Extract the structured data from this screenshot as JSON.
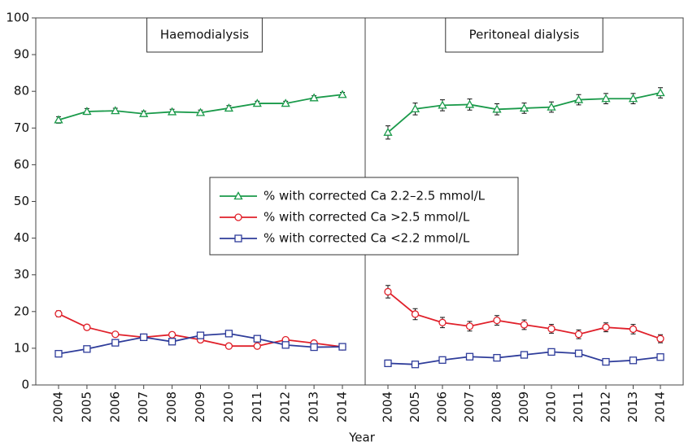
{
  "chart_data": {
    "type": "line",
    "xlabel": "Year",
    "categories": [
      "2004",
      "2005",
      "2006",
      "2007",
      "2008",
      "2009",
      "2010",
      "2011",
      "2012",
      "2013",
      "2014"
    ],
    "ylim": [
      0,
      100
    ],
    "yticks": [
      0,
      10,
      20,
      30,
      40,
      50,
      60,
      70,
      80,
      90,
      100
    ],
    "legend": "center",
    "series": [
      {
        "name": "% with corrected Ca 2.2–2.5 mmol/L",
        "color": "#1a9a4a",
        "marker": "triangle"
      },
      {
        "name": "% with corrected Ca >2.5 mmol/L",
        "color": "#e0202a",
        "marker": "circle"
      },
      {
        "name": "% with corrected Ca <2.2 mmol/L",
        "color": "#2e3c9a",
        "marker": "square"
      }
    ],
    "panels": [
      {
        "title": "Haemodialysis",
        "values": [
          [
            72.2,
            74.5,
            74.7,
            73.9,
            74.4,
            74.2,
            75.4,
            76.7,
            76.7,
            78.2,
            79.1
          ],
          [
            19.4,
            15.7,
            13.8,
            13.0,
            13.7,
            12.3,
            10.6,
            10.6,
            12.3,
            11.4,
            10.4
          ],
          [
            8.5,
            9.8,
            11.5,
            13.0,
            11.8,
            13.5,
            14.0,
            12.6,
            10.9,
            10.3,
            10.4
          ]
        ],
        "errors": [
          [
            0.9,
            0.8,
            0.7,
            0.7,
            0.7,
            0.7,
            0.7,
            0.6,
            0.6,
            0.6,
            0.6
          ],
          [
            0.8,
            0.7,
            0.6,
            0.6,
            0.6,
            0.6,
            0.5,
            0.5,
            0.5,
            0.5,
            0.5
          ],
          [
            0.5,
            0.5,
            0.5,
            0.5,
            0.5,
            0.5,
            0.5,
            0.5,
            0.5,
            0.5,
            0.5
          ]
        ]
      },
      {
        "title": "Peritoneal dialysis",
        "values": [
          [
            68.8,
            75.2,
            76.2,
            76.4,
            75.1,
            75.4,
            75.7,
            77.7,
            78.0,
            78.0,
            79.6
          ],
          [
            25.4,
            19.3,
            17.0,
            16.0,
            17.6,
            16.4,
            15.3,
            13.8,
            15.7,
            15.2,
            12.6
          ],
          [
            5.9,
            5.6,
            6.8,
            7.7,
            7.4,
            8.2,
            9.0,
            8.6,
            6.3,
            6.7,
            7.6
          ]
        ],
        "errors": [
          [
            1.8,
            1.6,
            1.5,
            1.5,
            1.5,
            1.4,
            1.4,
            1.4,
            1.4,
            1.4,
            1.4
          ],
          [
            1.7,
            1.5,
            1.4,
            1.3,
            1.3,
            1.3,
            1.2,
            1.2,
            1.2,
            1.3,
            1.1
          ],
          [
            0.9,
            0.8,
            0.8,
            0.8,
            0.8,
            0.8,
            0.8,
            0.8,
            0.7,
            0.7,
            0.8
          ]
        ]
      }
    ]
  }
}
